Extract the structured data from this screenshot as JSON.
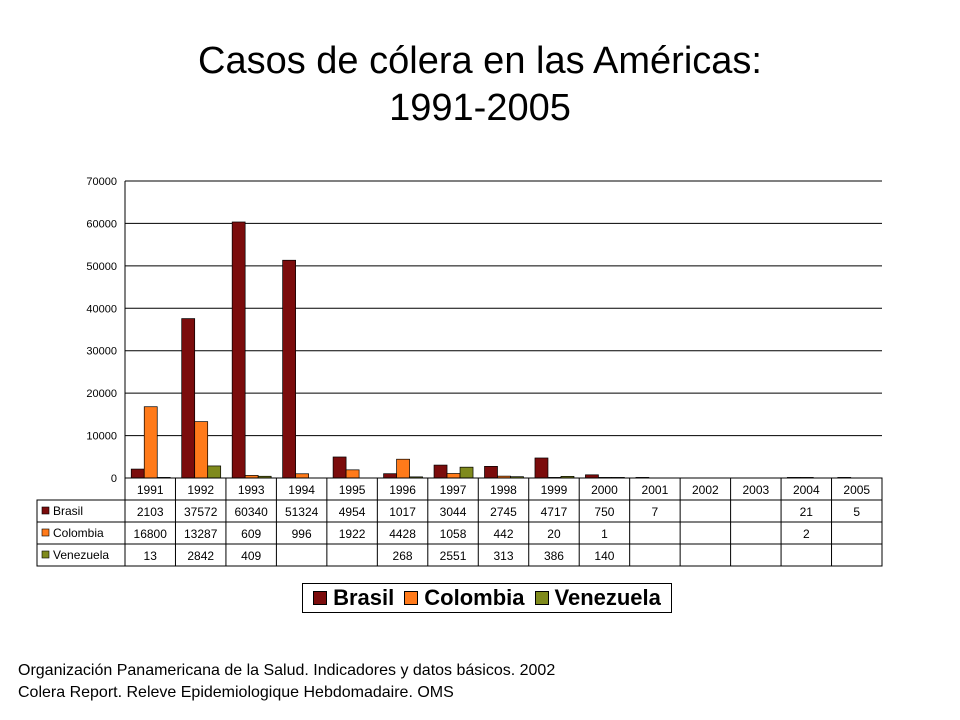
{
  "page": {
    "title_line1": "Casos de cólera en las Américas:",
    "title_line2": "1991-2005",
    "sources": [
      "Organización Panamericana de la Salud. Indicadores y datos básicos. 2002",
      "Colera Report. Releve Epidemiologique Hebdomadaire. OMS"
    ]
  },
  "chart_data": {
    "type": "bar",
    "title": "Casos de cólera en las Américas: 1991-2005",
    "xlabel": "",
    "ylabel": "",
    "ylim": [
      0,
      70000
    ],
    "yticks": [
      "0",
      "10000",
      "20000",
      "30000",
      "40000",
      "50000",
      "60000",
      "70000"
    ],
    "grid": true,
    "legend_position": "bottom",
    "categories": [
      "1991",
      "1992",
      "1993",
      "1994",
      "1995",
      "1996",
      "1997",
      "1998",
      "1999",
      "2000",
      "2001",
      "2002",
      "2003",
      "2004",
      "2005"
    ],
    "series": [
      {
        "name": "Brasil",
        "color": "#7b0c0c",
        "values": [
          2103,
          37572,
          60340,
          51324,
          4954,
          1017,
          3044,
          2745,
          4717,
          750,
          7,
          null,
          null,
          21,
          5
        ]
      },
      {
        "name": "Colombia",
        "color": "#ff7a1a",
        "values": [
          16800,
          13287,
          609,
          996,
          1922,
          4428,
          1058,
          442,
          20,
          1,
          null,
          null,
          null,
          2,
          null
        ]
      },
      {
        "name": "Venezuela",
        "color": "#7f8a1c",
        "values": [
          13,
          2842,
          409,
          null,
          null,
          268,
          2551,
          313,
          386,
          140,
          null,
          null,
          null,
          null,
          null
        ]
      }
    ]
  }
}
